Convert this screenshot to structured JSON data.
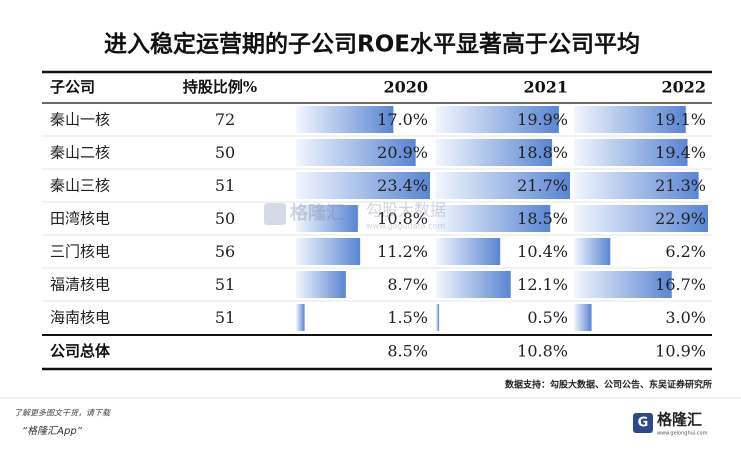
{
  "title": "进入稳定运营期的子公司ROE水平显著高于公司平均",
  "table": {
    "header": [
      "子公司",
      "持股比例%",
      "2020",
      "2021",
      "2022"
    ],
    "rows": [
      [
        "秦山一核",
        72,
        {
          "value": 17.0,
          "label": "17.0%"
        },
        {
          "value": 19.9,
          "label": "19.9%"
        },
        {
          "value": 19.1,
          "label": "19.1%"
        }
      ],
      [
        "秦山二核",
        50,
        {
          "value": 20.9,
          "label": "20.9%"
        },
        {
          "value": 18.8,
          "label": "18.8%"
        },
        {
          "value": 19.4,
          "label": "19.4%"
        }
      ],
      [
        "秦山三核",
        51,
        {
          "value": 23.4,
          "label": "23.4%"
        },
        {
          "value": 21.7,
          "label": "21.7%"
        },
        {
          "value": 21.3,
          "label": "21.3%"
        }
      ],
      [
        "田湾核电",
        50,
        {
          "value": 10.8,
          "label": "10.8%"
        },
        {
          "value": 18.5,
          "label": "18.5%"
        },
        {
          "value": 22.9,
          "label": "22.9%"
        }
      ],
      [
        "三门核电",
        56,
        {
          "value": 11.2,
          "label": "11.2%"
        },
        {
          "value": 10.4,
          "label": "10.4%"
        },
        {
          "value": 6.2,
          "label": "6.2%"
        }
      ],
      [
        "福清核电",
        51,
        {
          "value": 8.7,
          "label": "8.7%"
        },
        {
          "value": 12.1,
          "label": "12.1%"
        },
        {
          "value": 16.7,
          "label": "16.7%"
        }
      ],
      [
        "海南核电",
        51,
        {
          "value": 1.5,
          "label": "1.5%"
        },
        {
          "value": 0.5,
          "label": "0.5%"
        },
        {
          "value": 3.0,
          "label": "3.0%"
        }
      ]
    ],
    "total": {
      "label": "公司总体",
      "values": [
        {
          "value": 8.5,
          "label": "8.5%"
        },
        {
          "value": 10.8,
          "label": "10.8%"
        },
        {
          "value": 10.9,
          "label": "10.9%"
        }
      ]
    }
  },
  "watermark": {
    "brand": "格隆汇",
    "name": "勾股大数据",
    "url": "www.gogudata.com"
  },
  "footer": {
    "source": "数据支持：勾股大数据、公司公告、东吴证券研究所",
    "promo": "了解更多图文干货，请下载",
    "app": "“格隆汇App”",
    "logo": {
      "name": "格隆汇",
      "url": "www.gelonghui.com"
    }
  }
}
